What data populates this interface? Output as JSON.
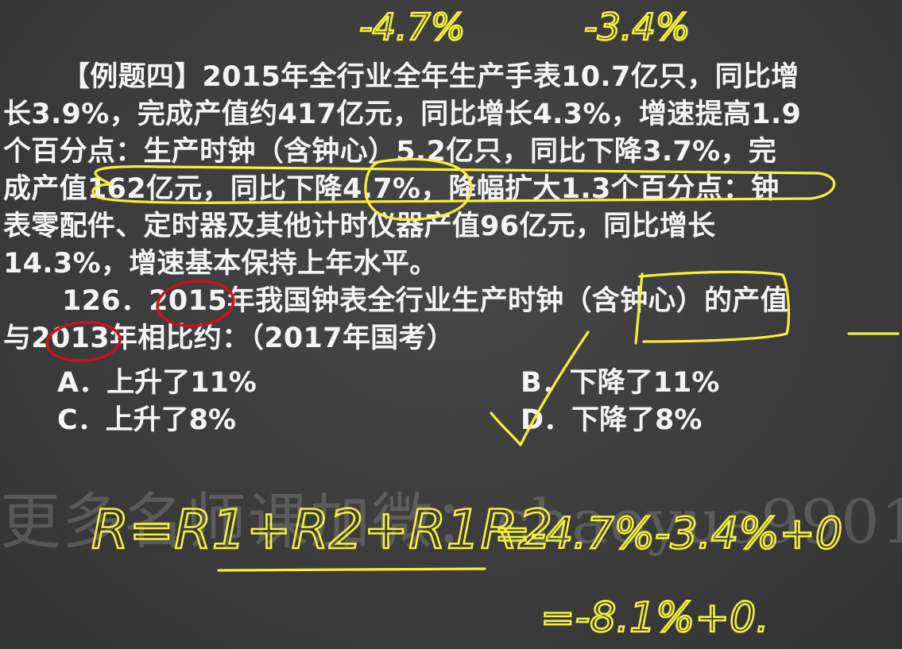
{
  "passage": {
    "line1": "【例题四】2015年全行业全年生产手表10.7亿只，同比增",
    "line2": "长3.9%，完成产值约417亿元，同比增长4.3%，增速提高1.9",
    "line3": "个百分点：生产时钟（含钟心）5.2亿只，同比下降3.7%，完",
    "line4": "成产值162亿元，同比下降4.7%，降幅扩大1.3个百分点：钟",
    "line5": "表零配件、定时器及其他计时仪器产值96亿元，同比增长",
    "line6": "14.3%，增速基本保持上年水平。"
  },
  "question": {
    "line1": "126．2015年我国钟表全行业生产时钟（含钟心）的产值",
    "line2": "与2013年相比约：（2017年国考）"
  },
  "options": {
    "a": "A．上升了11%",
    "b": "B．下降了11%",
    "c": "C．上升了8%",
    "d": "D．下降了8%"
  },
  "watermark": "更多名师课加微：chaoyue9901",
  "annotations": {
    "top_left": "-4.7%",
    "top_right": "-3.4%",
    "formula_lhs": "R=R1+R2+R1R2",
    "formula_rhs": "=-4.7%-3.4%+0",
    "result": "=-8.1%+0."
  },
  "colors": {
    "background": "#3c3c3c",
    "text": "#f4f4f4",
    "highlighter_yellow": "#f3f23a",
    "circle_red": "#c8141c"
  }
}
